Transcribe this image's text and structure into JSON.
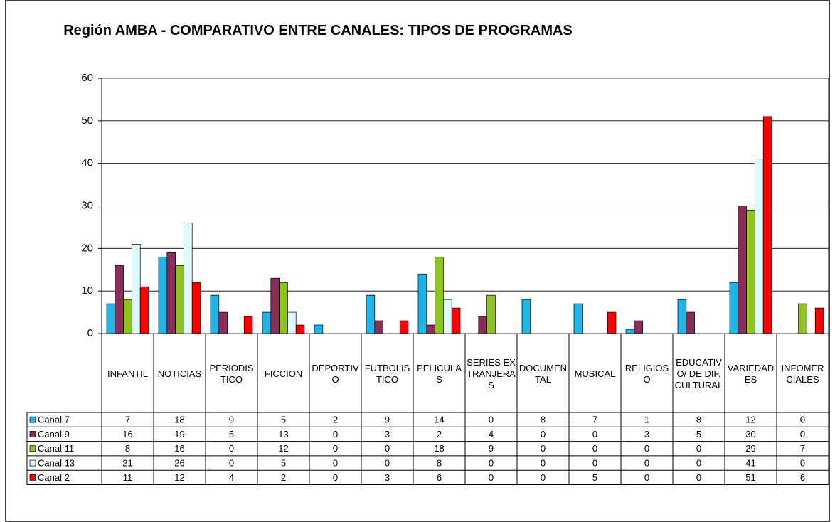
{
  "chart_data": {
    "type": "bar",
    "title": "Región AMBA - COMPARATIVO ENTRE CANALES: TIPOS DE PROGRAMAS",
    "categories": [
      "INFANTIL",
      "NOTICIAS",
      "PERIODISTICO",
      "FICCION",
      "DEPORTIVO",
      "FUTBOLISTICO",
      "PELICULAS",
      "SERIES EXTRANJERAS",
      "DOCUMENTAL",
      "MUSICAL",
      "RELIGIOSO",
      "EDUCATIVO/ DE DIF. CULTURAL",
      "VARIEDADES",
      "INFOMERCIALES"
    ],
    "series": [
      {
        "name": "Canal 7",
        "color": "#1fb5e8",
        "values": [
          7,
          18,
          9,
          5,
          2,
          9,
          14,
          0,
          8,
          7,
          1,
          8,
          12,
          0
        ]
      },
      {
        "name": "Canal 9",
        "color": "#8b2d5a",
        "values": [
          16,
          19,
          5,
          13,
          0,
          3,
          2,
          4,
          0,
          0,
          3,
          5,
          30,
          0
        ]
      },
      {
        "name": "Canal 11",
        "color": "#8dc21f",
        "values": [
          8,
          16,
          0,
          12,
          0,
          0,
          18,
          9,
          0,
          0,
          0,
          0,
          29,
          7
        ]
      },
      {
        "name": "Canal 13",
        "color": "#dcfaff",
        "values": [
          21,
          26,
          0,
          5,
          0,
          0,
          8,
          0,
          0,
          0,
          0,
          0,
          41,
          0
        ]
      },
      {
        "name": "Canal 2",
        "color": "#ff0000",
        "values": [
          11,
          12,
          4,
          2,
          0,
          3,
          6,
          0,
          0,
          5,
          0,
          0,
          51,
          6
        ]
      }
    ],
    "ylim": [
      0,
      60
    ],
    "yticks": [
      0,
      10,
      20,
      30,
      40,
      50,
      60
    ],
    "grid": true
  }
}
